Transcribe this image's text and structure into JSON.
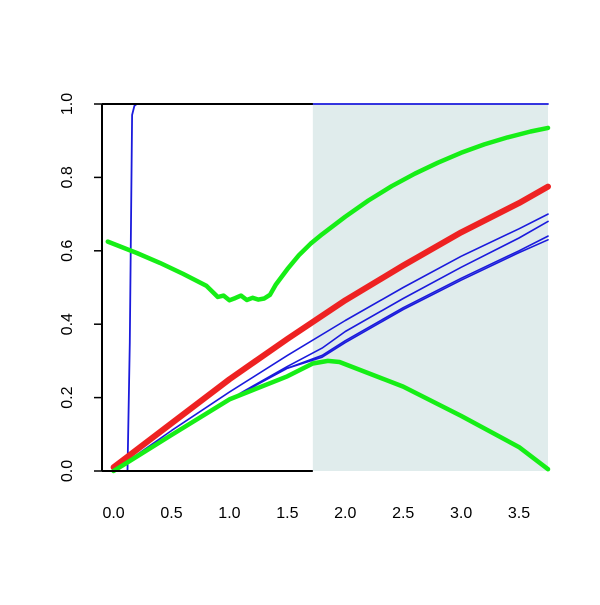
{
  "chart_data": {
    "type": "line",
    "title": "",
    "xlabel": "",
    "ylabel": "",
    "xlim": [
      -0.1,
      3.75
    ],
    "ylim": [
      0.0,
      1.0
    ],
    "x_ticks": [
      0.0,
      0.5,
      1.0,
      1.5,
      2.0,
      2.5,
      3.0,
      3.5
    ],
    "x_tick_labels": [
      "0.0",
      "0.5",
      "1.0",
      "1.5",
      "2.0",
      "2.5",
      "3.0",
      "3.5"
    ],
    "y_ticks": [
      0.0,
      0.2,
      0.4,
      0.6,
      0.8,
      1.0
    ],
    "y_tick_labels": [
      "0.0",
      "0.2",
      "0.4",
      "0.6",
      "0.8",
      "1.0"
    ],
    "grid": false,
    "legend": "none",
    "shaded_region": {
      "x_start": 1.72,
      "x_end": 3.75,
      "color": "#e0ecec"
    },
    "colors": {
      "red": "#ee2222",
      "blue": "#1a1adc",
      "green": "#16ee16",
      "axis": "#000000"
    },
    "series": [
      {
        "color": "blue",
        "width": 1.8,
        "x": [
          0.12,
          0.14,
          0.16,
          0.18,
          0.2,
          3.75
        ],
        "y": [
          0.0,
          0.35,
          0.97,
          0.995,
          1.0,
          1.0
        ]
      },
      {
        "color": "green",
        "width": 4.5,
        "x": [
          -0.05,
          0.2,
          0.4,
          0.6,
          0.8,
          0.9,
          0.95,
          1.0,
          1.05,
          1.1,
          1.15,
          1.2,
          1.25,
          1.3,
          1.35,
          1.4,
          1.5,
          1.6,
          1.7,
          1.8,
          2.0,
          2.2,
          2.4,
          2.6,
          2.8,
          3.0,
          3.2,
          3.4,
          3.6,
          3.75
        ],
        "y": [
          0.625,
          0.594,
          0.567,
          0.537,
          0.505,
          0.474,
          0.478,
          0.465,
          0.471,
          0.478,
          0.466,
          0.472,
          0.467,
          0.47,
          0.48,
          0.508,
          0.55,
          0.588,
          0.619,
          0.645,
          0.693,
          0.737,
          0.776,
          0.81,
          0.84,
          0.867,
          0.89,
          0.909,
          0.925,
          0.935
        ]
      },
      {
        "color": "red",
        "width": 6,
        "x": [
          0.0,
          0.5,
          1.0,
          1.5,
          2.0,
          2.5,
          3.0,
          3.5,
          3.75
        ],
        "y": [
          0.01,
          0.13,
          0.25,
          0.36,
          0.465,
          0.56,
          0.65,
          0.73,
          0.775
        ]
      },
      {
        "color": "blue",
        "width": 1.6,
        "x": [
          0.0,
          0.5,
          1.0,
          1.5,
          2.0,
          2.5,
          3.0,
          3.5,
          3.75
        ],
        "y": [
          0.0,
          0.11,
          0.215,
          0.315,
          0.41,
          0.5,
          0.585,
          0.66,
          0.7
        ]
      },
      {
        "color": "blue",
        "width": 1.6,
        "x": [
          0.0,
          0.5,
          1.0,
          1.5,
          1.8,
          2.0,
          2.5,
          3.0,
          3.5,
          3.75
        ],
        "y": [
          0.0,
          0.1,
          0.195,
          0.285,
          0.335,
          0.38,
          0.47,
          0.555,
          0.635,
          0.68
        ]
      },
      {
        "color": "blue",
        "width": 1.6,
        "x": [
          0.0,
          0.5,
          1.0,
          1.5,
          1.8,
          2.0,
          2.5,
          3.0,
          3.5,
          3.75
        ],
        "y": [
          0.0,
          0.1,
          0.195,
          0.28,
          0.315,
          0.355,
          0.445,
          0.525,
          0.6,
          0.64
        ]
      },
      {
        "color": "blue",
        "width": 1.6,
        "x": [
          0.0,
          0.5,
          1.0,
          1.5,
          1.8,
          2.0,
          2.5,
          3.0,
          3.5,
          3.75
        ],
        "y": [
          0.0,
          0.1,
          0.195,
          0.28,
          0.31,
          0.35,
          0.44,
          0.52,
          0.595,
          0.63
        ]
      },
      {
        "color": "green",
        "width": 4.5,
        "x": [
          0.0,
          0.5,
          1.0,
          1.5,
          1.72,
          1.85,
          1.95,
          2.5,
          3.0,
          3.5,
          3.75
        ],
        "y": [
          0.0,
          0.098,
          0.195,
          0.258,
          0.293,
          0.3,
          0.297,
          0.23,
          0.15,
          0.065,
          0.005
        ]
      }
    ]
  }
}
